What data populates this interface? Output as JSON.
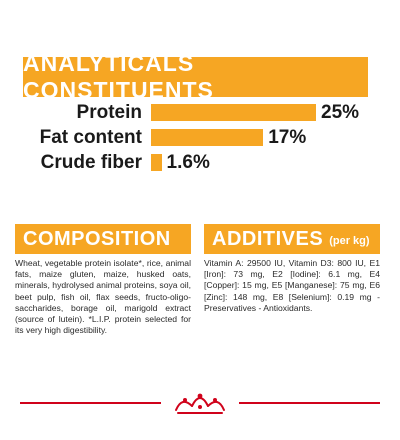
{
  "analytics": {
    "title": "ANALYTICALS CONSTITUENTS",
    "items": [
      {
        "label": "Protein",
        "value": "25%",
        "percent": 25
      },
      {
        "label": "Fat content",
        "value": "17%",
        "percent": 17
      },
      {
        "label": "Crude fiber",
        "value": "1.6%",
        "percent": 1.6
      }
    ]
  },
  "composition": {
    "title": "COMPOSITION",
    "text": "Wheat, vegetable protein isolate*, rice, animal fats, maize gluten, maize, husked oats, minerals, hydrolysed animal proteins, soya oil, beet pulp, fish oil, flax seeds, fructo-oligo-saccharides, borage oil, marigold extract (source of lutein). *L.I.P. protein selected for its very high digestibility."
  },
  "additives": {
    "title": "ADDITIVES",
    "unit": "(per kg)",
    "text": "Vitamin A: 29500 IU, Vitamin D3: 800 IU, E1 [Iron]: 73 mg, E2 [Iodine]: 6.1 mg, E4 [Copper]: 15 mg, E5 [Manganese]: 75 mg, E6 [Zinc]: 148 mg, E8 [Selenium]: 0.19 mg - Preservatives - Antioxidants."
  },
  "colors": {
    "accent": "#f6a623",
    "brand_red": "#d0021b",
    "text": "#1a1a1a"
  },
  "footer": {
    "logo_icon": "royal-canin-crown-icon"
  }
}
